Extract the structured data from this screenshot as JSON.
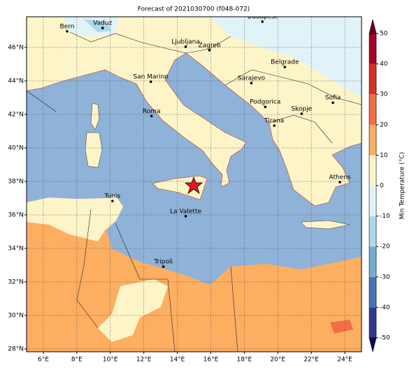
{
  "chart_data": {
    "type": "map",
    "title": "Forecast of 2021030700 (f048-072)",
    "xlim": [
      5,
      25
    ],
    "ylim": [
      27.83,
      47.83
    ],
    "xticks": [
      {
        "value": 6,
        "label": "6°E"
      },
      {
        "value": 8,
        "label": "8°E"
      },
      {
        "value": 10,
        "label": "10°E"
      },
      {
        "value": 12,
        "label": "12°E"
      },
      {
        "value": 14,
        "label": "14°E"
      },
      {
        "value": 16,
        "label": "16°E"
      },
      {
        "value": 18,
        "label": "18°E"
      },
      {
        "value": 20,
        "label": "20°E"
      },
      {
        "value": 22,
        "label": "22°E"
      },
      {
        "value": 24,
        "label": "24°E"
      }
    ],
    "yticks": [
      {
        "value": 28,
        "label": "28°N"
      },
      {
        "value": 30,
        "label": "30°N"
      },
      {
        "value": 32,
        "label": "32°N"
      },
      {
        "value": 34,
        "label": "34°N"
      },
      {
        "value": 36,
        "label": "36°N"
      },
      {
        "value": 38,
        "label": "38°N"
      },
      {
        "value": 40,
        "label": "40°N"
      },
      {
        "value": 42,
        "label": "42°N"
      },
      {
        "value": 44,
        "label": "44°N"
      },
      {
        "value": 46,
        "label": "46°N"
      }
    ],
    "grid": true,
    "cities": [
      {
        "name": "Bern",
        "lon": 7.42,
        "lat": 46.96
      },
      {
        "name": "Vaduz",
        "lon": 9.54,
        "lat": 47.16
      },
      {
        "name": "Budapest",
        "lon": 19.08,
        "lat": 47.54
      },
      {
        "name": "Ljubljana",
        "lon": 14.5,
        "lat": 46.04
      },
      {
        "name": "Zagreb",
        "lon": 15.92,
        "lat": 45.83
      },
      {
        "name": "San Marino",
        "lon": 12.42,
        "lat": 43.95
      },
      {
        "name": "Belgrade",
        "lon": 20.42,
        "lat": 44.83
      },
      {
        "name": "Sarajevo",
        "lon": 18.42,
        "lat": 43.87
      },
      {
        "name": "Sofia",
        "lon": 23.29,
        "lat": 42.7
      },
      {
        "name": "Podgorica",
        "lon": 19.25,
        "lat": 42.45
      },
      {
        "name": "Skopje",
        "lon": 21.42,
        "lat": 42.04
      },
      {
        "name": "Roma",
        "lon": 12.46,
        "lat": 41.9
      },
      {
        "name": "Tirana",
        "lon": 19.79,
        "lat": 41.33
      },
      {
        "name": "Athens",
        "lon": 23.71,
        "lat": 37.96
      },
      {
        "name": "Tunis",
        "lon": 10.13,
        "lat": 36.83
      },
      {
        "name": "La Valette",
        "lon": 14.5,
        "lat": 35.92
      },
      {
        "name": "Tripoli",
        "lon": 13.17,
        "lat": 32.91
      }
    ],
    "colorbar": {
      "label": "Min Temperature (°C)",
      "lim": [
        -50,
        50
      ],
      "ticks": [
        -50,
        -40,
        -30,
        -20,
        -10,
        0,
        10,
        20,
        30,
        40,
        50
      ],
      "colors": [
        "#313695",
        "#4575b4",
        "#74add1",
        "#abd9e9",
        "#e0f3f8",
        "#fdf5c8",
        "#fdae61",
        "#f46d43",
        "#d73027",
        "#a50026"
      ]
    }
  }
}
